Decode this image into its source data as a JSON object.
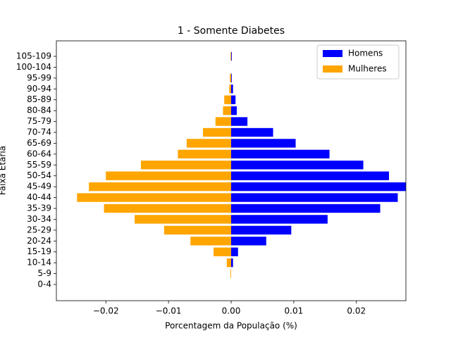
{
  "chart_data": {
    "type": "bar",
    "orientation": "horizontal",
    "title": "1 - Somente Diabetes",
    "xlabel": "Porcentagem da População (%)",
    "ylabel": "Faixa Etária",
    "categories": [
      "0-4",
      "5-9",
      "10-14",
      "15-19",
      "20-24",
      "25-29",
      "30-34",
      "35-39",
      "40-44",
      "45-49",
      "50-54",
      "55-59",
      "60-64",
      "65-69",
      "70-74",
      "75-79",
      "80-84",
      "85-89",
      "90-94",
      "95-99",
      "100-104",
      "105-109"
    ],
    "series": [
      {
        "name": "Homens",
        "color": "#0000ff",
        "values": [
          0,
          0,
          0.0003,
          0.0011,
          0.0056,
          0.0096,
          0.0154,
          0.0238,
          0.0266,
          0.0285,
          0.0252,
          0.0211,
          0.0157,
          0.0103,
          0.0067,
          0.0026,
          0.0009,
          0.0007,
          0.0003,
          0.0001,
          0,
          0.0001
        ]
      },
      {
        "name": "Mulheres",
        "color": "#ffa500",
        "values": [
          0,
          -0.0001,
          -0.0007,
          -0.0028,
          -0.0065,
          -0.0107,
          -0.0154,
          -0.0203,
          -0.0246,
          -0.0227,
          -0.02,
          -0.0144,
          -0.0085,
          -0.0071,
          -0.0045,
          -0.0025,
          -0.0013,
          -0.0011,
          -0.0003,
          -0.0002,
          0,
          -0.0001
        ]
      }
    ],
    "xlim": [
      -0.0279,
      0.0279
    ],
    "xticks": [
      {
        "value": -0.02,
        "label": "−0.02"
      },
      {
        "value": -0.01,
        "label": "−0.01"
      },
      {
        "value": 0,
        "label": "0.00"
      },
      0.01,
      0.02
    ],
    "legend": "upper right"
  }
}
